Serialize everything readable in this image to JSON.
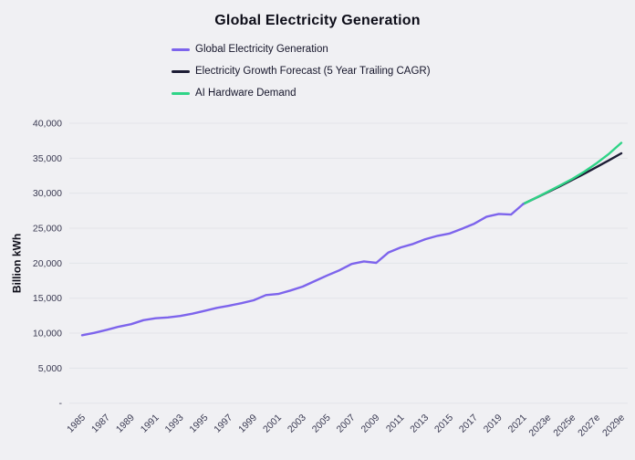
{
  "header": {
    "title": "Global Electricity Generation"
  },
  "legend": {
    "items": [
      {
        "label": "Global Electricity Generation",
        "color": "#7d64ec"
      },
      {
        "label": "Electricity Growth Forecast (5 Year Trailing CAGR)",
        "color": "#1d1d35"
      },
      {
        "label": "AI Hardware Demand",
        "color": "#2fd487"
      }
    ]
  },
  "chart_data": {
    "type": "line",
    "title": "Global Electricity Generation",
    "xlabel": "",
    "ylabel": "Billion kWh",
    "ylim": [
      0,
      40000
    ],
    "ytick_step": 5000,
    "ytick_labels": [
      "-",
      "5,000",
      "10,000",
      "15,000",
      "20,000",
      "25,000",
      "30,000",
      "35,000",
      "40,000"
    ],
    "xrange": [
      1985,
      2029
    ],
    "xtick_labels": [
      "1985",
      "1987",
      "1989",
      "1991",
      "1993",
      "1995",
      "1997",
      "1999",
      "2001",
      "2003",
      "2005",
      "2007",
      "2009",
      "2011",
      "2013",
      "2015",
      "2017",
      "2019",
      "2021",
      "2023e",
      "2025e",
      "2027e",
      "2029e"
    ],
    "grid": "horizontal",
    "legend_position": "top-left-column",
    "series": [
      {
        "name": "Global Electricity Generation",
        "color": "#7d64ec",
        "years": [
          1985,
          1986,
          1987,
          1988,
          1989,
          1990,
          1991,
          1992,
          1993,
          1994,
          1995,
          1996,
          1997,
          1998,
          1999,
          2000,
          2001,
          2002,
          2003,
          2004,
          2005,
          2006,
          2007,
          2008,
          2009,
          2010,
          2011,
          2012,
          2013,
          2014,
          2015,
          2016,
          2017,
          2018,
          2019,
          2020,
          2021
        ],
        "values": [
          9700,
          10040,
          10470,
          10930,
          11280,
          11850,
          12130,
          12250,
          12460,
          12780,
          13190,
          13620,
          13930,
          14280,
          14700,
          15440,
          15600,
          16100,
          16660,
          17450,
          18240,
          18990,
          19890,
          20250,
          20050,
          21530,
          22250,
          22740,
          23430,
          23900,
          24250,
          24920,
          25640,
          26650,
          27040,
          26940,
          28460
        ]
      },
      {
        "name": "Electricity Growth Forecast (5 Year Trailing CAGR)",
        "color": "#1d1d35",
        "years": [
          2021,
          2022,
          2023,
          2024,
          2025,
          2026,
          2027,
          2028,
          2029
        ],
        "values": [
          28460,
          29300,
          30150,
          31000,
          31900,
          32800,
          33750,
          34700,
          35700
        ]
      },
      {
        "name": "AI Hardware Demand",
        "color": "#2fd487",
        "years": [
          2021,
          2022,
          2023,
          2024,
          2025,
          2026,
          2027,
          2028,
          2029
        ],
        "values": [
          28460,
          29320,
          30200,
          31100,
          32050,
          33100,
          34300,
          35650,
          37200
        ]
      }
    ],
    "colors": {
      "background": "#f0f0f3",
      "gridline": "#e3e4e9",
      "tick_text": "#3a3a52",
      "title_text": "#0d0d18"
    }
  }
}
